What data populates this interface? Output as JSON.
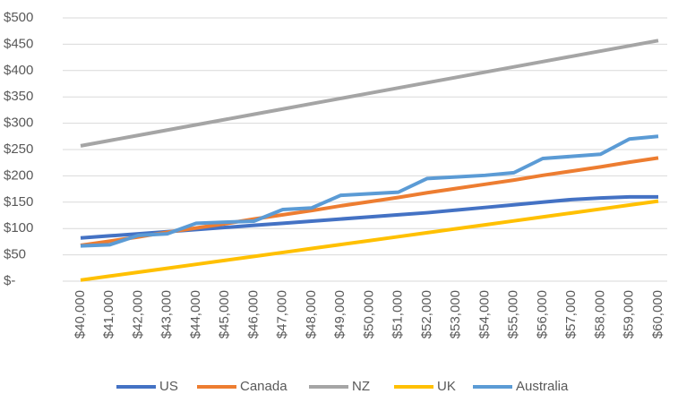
{
  "chart_data": {
    "type": "line",
    "categories": [
      "$40,000",
      "$41,000",
      "$42,000",
      "$43,000",
      "$44,000",
      "$45,000",
      "$46,000",
      "$47,000",
      "$48,000",
      "$49,000",
      "$50,000",
      "$51,000",
      "$52,000",
      "$53,000",
      "$54,000",
      "$55,000",
      "$56,000",
      "$57,000",
      "$58,000",
      "$59,000",
      "$60,000"
    ],
    "series": [
      {
        "name": "US",
        "color": "#4472c4",
        "values": [
          82,
          86,
          90,
          94,
          98,
          102,
          106,
          110,
          114,
          118,
          122,
          126,
          130,
          135,
          140,
          145,
          150,
          155,
          158,
          160,
          160
        ]
      },
      {
        "name": "Canada",
        "color": "#ed7d31",
        "values": [
          68,
          76,
          84,
          93,
          101,
          109,
          118,
          126,
          134,
          143,
          151,
          159,
          168,
          176,
          184,
          192,
          201,
          209,
          217,
          226,
          234
        ]
      },
      {
        "name": "NZ",
        "color": "#a5a5a5",
        "values": [
          257,
          267,
          277,
          287,
          297,
          307,
          317,
          327,
          337,
          347,
          357,
          367,
          377,
          387,
          397,
          407,
          417,
          427,
          437,
          447,
          457
        ]
      },
      {
        "name": "UK",
        "color": "#ffc000",
        "values": [
          2,
          9.5,
          17,
          24.5,
          32,
          39.5,
          47,
          54.5,
          62,
          69.5,
          77,
          84.5,
          92,
          99.5,
          107,
          114.5,
          122,
          129.5,
          137,
          144.5,
          152
        ]
      },
      {
        "name": "Australia",
        "color": "#5b9bd5",
        "values": [
          67,
          69,
          87,
          90,
          110,
          112,
          114,
          136,
          139,
          163,
          166,
          169,
          195,
          198,
          201,
          206,
          233,
          237,
          241,
          270,
          275
        ]
      }
    ],
    "ylim": [
      0,
      500
    ],
    "yticks": [
      {
        "value": 0,
        "label": "$-"
      },
      {
        "value": 50,
        "label": "$50"
      },
      {
        "value": 100,
        "label": "$100"
      },
      {
        "value": 150,
        "label": "$150"
      },
      {
        "value": 200,
        "label": "$200"
      },
      {
        "value": 250,
        "label": "$250"
      },
      {
        "value": 300,
        "label": "$300"
      },
      {
        "value": 350,
        "label": "$350"
      },
      {
        "value": 400,
        "label": "$400"
      },
      {
        "value": 450,
        "label": "$450"
      },
      {
        "value": 500,
        "label": "$500"
      }
    ],
    "grid": true
  }
}
